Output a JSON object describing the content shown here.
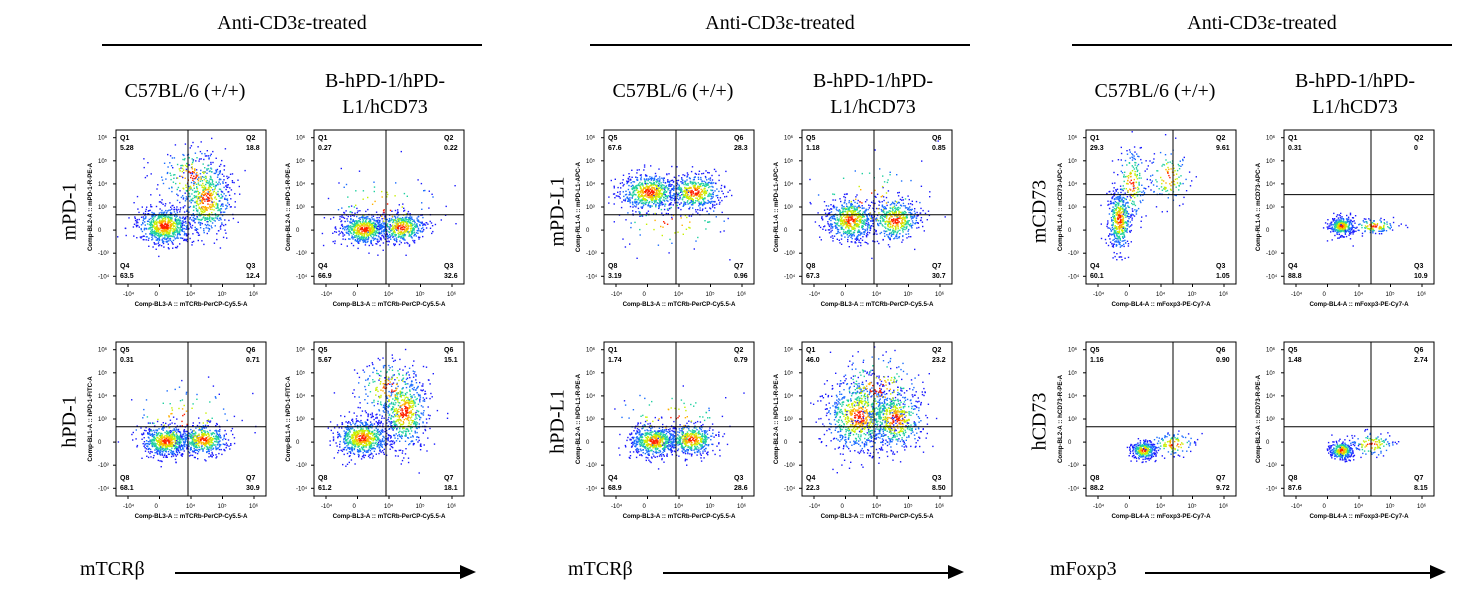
{
  "panels": [
    {
      "header": "Anti-CD3ε-treated",
      "col1": "C57BL/6 (+/+)",
      "col2": "B-hPD-1/hPD-L1/hCD73",
      "row1": "mPD-1",
      "row2": "hPD-1",
      "xaxis": "mTCRβ",
      "plots": [
        {
          "xlabel": "Comp-BL3-A :: mTCRb-PerCP-Cy5.5-A",
          "ylabel": "Comp-BL2-A :: mPD-1-R-PE-A",
          "q": [
            {
              "name": "Q1",
              "val": "5.28"
            },
            {
              "name": "Q2",
              "val": "18.8"
            },
            {
              "name": "Q4",
              "val": "63.5"
            },
            {
              "name": "Q3",
              "val": "12.4"
            }
          ],
          "pattern": "mpd1-wt"
        },
        {
          "xlabel": "Comp-BL3-A :: mTCRb-PerCP-Cy5.5-A",
          "ylabel": "Comp-BL2-A :: mPD-1-R-PE-A",
          "q": [
            {
              "name": "Q1",
              "val": "0.27"
            },
            {
              "name": "Q2",
              "val": "0.22"
            },
            {
              "name": "Q4",
              "val": "66.9"
            },
            {
              "name": "Q3",
              "val": "32.6"
            }
          ],
          "pattern": "double-low"
        },
        {
          "xlabel": "Comp-BL3-A :: mTCRb-PerCP-Cy5.5-A",
          "ylabel": "Comp-BL1-A :: hPD-1-FITC-A",
          "q": [
            {
              "name": "Q5",
              "val": "0.31"
            },
            {
              "name": "Q6",
              "val": "0.71"
            },
            {
              "name": "Q8",
              "val": "68.1"
            },
            {
              "name": "Q7",
              "val": "30.9"
            }
          ],
          "pattern": "double-low"
        },
        {
          "xlabel": "Comp-BL3-A :: mTCRb-PerCP-Cy5.5-A",
          "ylabel": "Comp-BL1-A :: hPD-1-FITC-A",
          "q": [
            {
              "name": "Q5",
              "val": "5.67"
            },
            {
              "name": "Q6",
              "val": "15.1"
            },
            {
              "name": "Q8",
              "val": "61.2"
            },
            {
              "name": "Q7",
              "val": "18.1"
            }
          ],
          "pattern": "mpd1-wt"
        }
      ]
    },
    {
      "header": "Anti-CD3ε-treated",
      "col1": "C57BL/6 (+/+)",
      "col2": "B-hPD-1/hPD-L1/hCD73",
      "row1": "mPD-L1",
      "row2": "hPD-L1",
      "xaxis": "mTCRβ",
      "plots": [
        {
          "xlabel": "Comp-BL3-A :: mTCRb-PerCP-Cy5.5-A",
          "ylabel": "Comp-RL1-A :: mPD-L1-APC-A",
          "q": [
            {
              "name": "Q5",
              "val": "67.6"
            },
            {
              "name": "Q6",
              "val": "28.3"
            },
            {
              "name": "Q8",
              "val": "3.19"
            },
            {
              "name": "Q7",
              "val": "0.96"
            }
          ],
          "pattern": "double-high"
        },
        {
          "xlabel": "Comp-BL3-A :: mTCRb-PerCP-Cy5.5-A",
          "ylabel": "Comp-RL1-A :: mPD-L1-APC-A",
          "q": [
            {
              "name": "Q5",
              "val": "1.18"
            },
            {
              "name": "Q6",
              "val": "0.85"
            },
            {
              "name": "Q8",
              "val": "67.3"
            },
            {
              "name": "Q7",
              "val": "30.7"
            }
          ],
          "pattern": "double-mid"
        },
        {
          "xlabel": "Comp-BL3-A :: mTCRb-PerCP-Cy5.5-A",
          "ylabel": "Comp-BL2-A :: hPD-L1-R-PE-A",
          "q": [
            {
              "name": "Q1",
              "val": "1.74"
            },
            {
              "name": "Q2",
              "val": "0.79"
            },
            {
              "name": "Q4",
              "val": "68.9"
            },
            {
              "name": "Q3",
              "val": "28.6"
            }
          ],
          "pattern": "double-low"
        },
        {
          "xlabel": "Comp-BL3-A :: mTCRb-PerCP-Cy5.5-A",
          "ylabel": "Comp-BL2-A :: hPD-L1-R-PE-A",
          "q": [
            {
              "name": "Q1",
              "val": "46.0"
            },
            {
              "name": "Q2",
              "val": "23.2"
            },
            {
              "name": "Q4",
              "val": "22.3"
            },
            {
              "name": "Q3",
              "val": "8.50"
            }
          ],
          "pattern": "spread"
        }
      ]
    },
    {
      "header": "Anti-CD3ε-treated",
      "col1": "C57BL/6 (+/+)",
      "col2": "B-hPD-1/hPD-L1/hCD73",
      "row1": "mCD73",
      "row2": "hCD73",
      "xaxis": "mFoxp3",
      "plots": [
        {
          "xlabel": "Comp-BL4-A :: mFoxp3-PE-Cy7-A",
          "ylabel": "Comp-RL1-A :: mCD73-APC-A",
          "q": [
            {
              "name": "Q1",
              "val": "29.3"
            },
            {
              "name": "Q2",
              "val": "9.61"
            },
            {
              "name": "Q4",
              "val": "60.1"
            },
            {
              "name": "Q3",
              "val": "1.05"
            }
          ],
          "pattern": "foxp3-vert"
        },
        {
          "xlabel": "Comp-BL4-A :: mFoxp3-PE-Cy7-A",
          "ylabel": "Comp-RL1-A :: mCD73-APC-A",
          "q": [
            {
              "name": "Q1",
              "val": "0.31"
            },
            {
              "name": "Q2",
              "val": "0"
            },
            {
              "name": "Q4",
              "val": "88.8"
            },
            {
              "name": "Q3",
              "val": "10.9"
            }
          ],
          "pattern": "foxp3-small"
        },
        {
          "xlabel": "Comp-BL4-A :: mFoxp3-PE-Cy7-A",
          "ylabel": "Comp-BL2-A :: hCD73-R-PE-A",
          "q": [
            {
              "name": "Q5",
              "val": "1.16"
            },
            {
              "name": "Q6",
              "val": "0.90"
            },
            {
              "name": "Q8",
              "val": "88.2"
            },
            {
              "name": "Q7",
              "val": "9.72"
            }
          ],
          "pattern": "foxp3-low"
        },
        {
          "xlabel": "Comp-BL4-A :: mFoxp3-PE-Cy7-A",
          "ylabel": "Comp-BL2-A :: hCD73-R-PE-A",
          "q": [
            {
              "name": "Q5",
              "val": "1.48"
            },
            {
              "name": "Q6",
              "val": "2.74"
            },
            {
              "name": "Q8",
              "val": "87.6"
            },
            {
              "name": "Q7",
              "val": "8.15"
            }
          ],
          "pattern": "foxp3-low"
        }
      ]
    }
  ],
  "ticks": {
    "x": [
      "-10⁴",
      "0",
      "10⁴",
      "10⁵",
      "10⁶"
    ],
    "y": [
      "10⁶",
      "10⁵",
      "10⁴",
      "10³",
      "0",
      "-10³",
      "-10⁴"
    ]
  },
  "colors": {
    "axis": "#000",
    "low": "#1a1aff",
    "high": "#ff2200"
  }
}
